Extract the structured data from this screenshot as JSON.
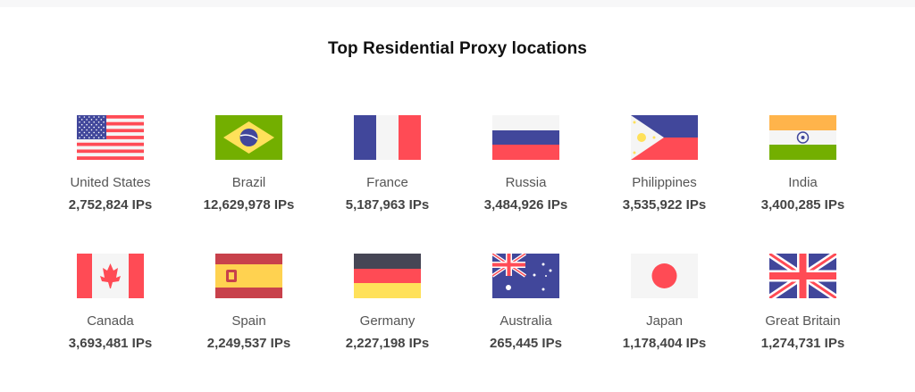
{
  "title": "Top Residential Proxy locations",
  "colors": {
    "blue": "#41479b",
    "red": "#ff4b55",
    "white": "#f5f5f5",
    "green": "#73af00",
    "yellow": "#ffe15a",
    "orange": "#ffb44b",
    "dark": "#464655"
  },
  "locations": [
    {
      "flag": "us",
      "name": "United States",
      "ips": "2,752,824 IPs"
    },
    {
      "flag": "br",
      "name": "Brazil",
      "ips": "12,629,978 IPs"
    },
    {
      "flag": "fr",
      "name": "France",
      "ips": "5,187,963 IPs"
    },
    {
      "flag": "ru",
      "name": "Russia",
      "ips": "3,484,926 IPs"
    },
    {
      "flag": "ph",
      "name": "Philippines",
      "ips": "3,535,922 IPs"
    },
    {
      "flag": "in",
      "name": "India",
      "ips": "3,400,285 IPs"
    },
    {
      "flag": "ca",
      "name": "Canada",
      "ips": "3,693,481 IPs"
    },
    {
      "flag": "es",
      "name": "Spain",
      "ips": "2,249,537 IPs"
    },
    {
      "flag": "de",
      "name": "Germany",
      "ips": "2,227,198 IPs"
    },
    {
      "flag": "au",
      "name": "Australia",
      "ips": "265,445 IPs"
    },
    {
      "flag": "jp",
      "name": "Japan",
      "ips": "1,178,404 IPs"
    },
    {
      "flag": "gb",
      "name": "Great Britain",
      "ips": "1,274,731 IPs"
    }
  ]
}
